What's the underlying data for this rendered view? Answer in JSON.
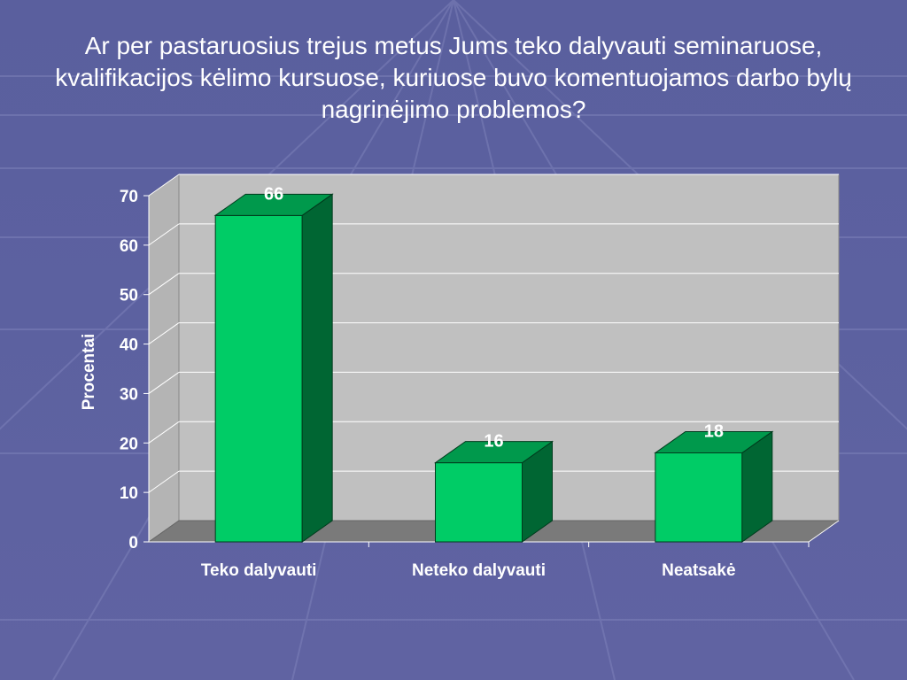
{
  "slide": {
    "title": "Ar per pastaruosius trejus metus Jums teko dalyvauti seminaruose, kvalifikacijos kėlimo kursuose, kuriuose buvo komentuojamos darbo bylų nagrinėjimo problemos?"
  },
  "chart_data": {
    "type": "bar",
    "categories": [
      "Teko dalyvauti",
      "Neteko dalyvauti",
      "Neatsakė"
    ],
    "values": [
      66,
      16,
      18
    ],
    "data_labels": [
      "66",
      "16",
      "18"
    ],
    "title": "",
    "xlabel": "",
    "ylabel": "Procentai",
    "ylim": [
      0,
      70
    ],
    "yticks": [
      0,
      10,
      20,
      30,
      40,
      50,
      60,
      70
    ],
    "grid": true,
    "legend": "none",
    "style": "3d",
    "colors": {
      "bar_front": "#00cc66",
      "bar_side": "#006633",
      "bar_top": "#00994c",
      "plot_wall": "#c0c0c0",
      "floor": "#7a7a7a",
      "background": "#5a5f9e"
    }
  }
}
